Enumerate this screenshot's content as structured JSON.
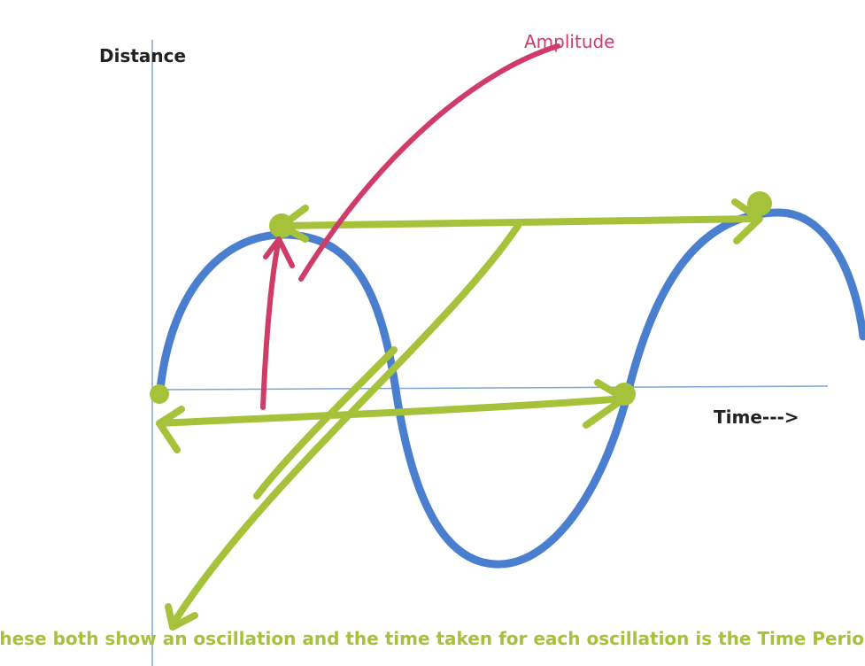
{
  "labels": {
    "y_axis": "Distance",
    "x_axis": "Time--->",
    "amplitude": "Amplitude",
    "caption": "These both show an oscillation and the time taken for each oscillation is the Time Period"
  }
}
